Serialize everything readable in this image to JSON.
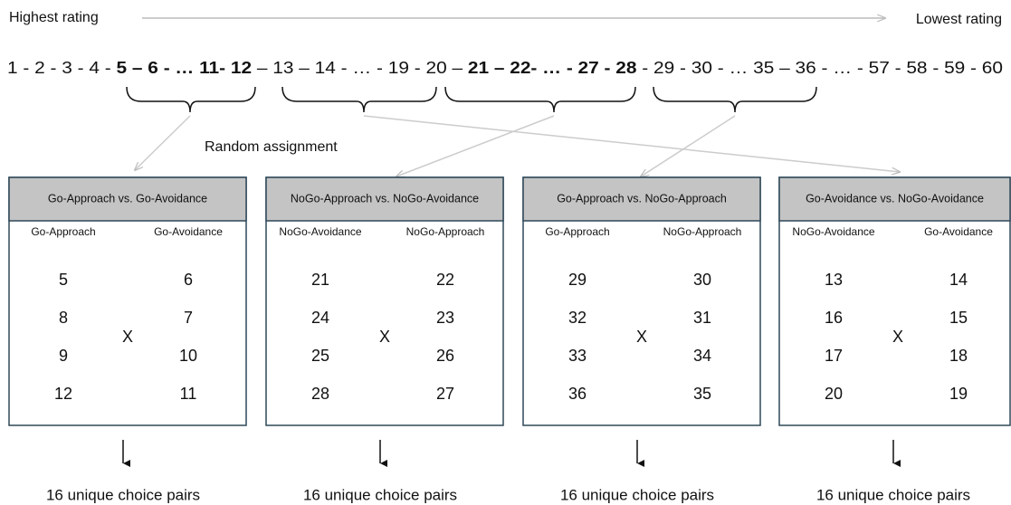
{
  "header": {
    "left": "Highest rating",
    "right": "Lowest rating"
  },
  "sequence": [
    {
      "text": "1 - 2 - 3 - 4 - ",
      "bold": false
    },
    {
      "text": "5 – 6 - … 11- 12",
      "bold": true
    },
    {
      "text": " – 13 – 14 - … - 19 - 20 – ",
      "bold": false
    },
    {
      "text": "21 – 22- … - 27 - 28",
      "bold": true
    },
    {
      "text": " - 29 - 30 - … 35 – 36 - … - 57 - 58 - 59 - 60",
      "bold": false
    }
  ],
  "assignment_label": "Random assignment",
  "panels": [
    {
      "title": "Go-Approach vs. Go-Avoidance",
      "left_label": "Go-Approach",
      "right_label": "Go-Avoidance",
      "left_values": [
        5,
        8,
        9,
        12
      ],
      "right_values": [
        6,
        7,
        10,
        11
      ],
      "cross": "X",
      "footer": "16 unique choice pairs"
    },
    {
      "title": "NoGo-Approach vs. NoGo-Avoidance",
      "left_label": "NoGo-Avoidance",
      "right_label": "NoGo-Approach",
      "left_values": [
        21,
        24,
        25,
        28
      ],
      "right_values": [
        22,
        23,
        26,
        27
      ],
      "cross": "X",
      "footer": "16 unique choice pairs"
    },
    {
      "title": "Go-Approach vs. NoGo-Approach",
      "left_label": "Go-Approach",
      "right_label": "NoGo-Approach",
      "left_values": [
        29,
        32,
        33,
        36
      ],
      "right_values": [
        30,
        31,
        34,
        35
      ],
      "cross": "X",
      "footer": "16 unique choice pairs"
    },
    {
      "title": "Go-Avoidance vs. NoGo-Avoidance",
      "left_label": "NoGo-Avoidance",
      "right_label": "Go-Avoidance",
      "left_values": [
        13,
        16,
        17,
        20
      ],
      "right_values": [
        14,
        15,
        18,
        19
      ],
      "cross": "X",
      "footer": "16 unique choice pairs"
    }
  ]
}
